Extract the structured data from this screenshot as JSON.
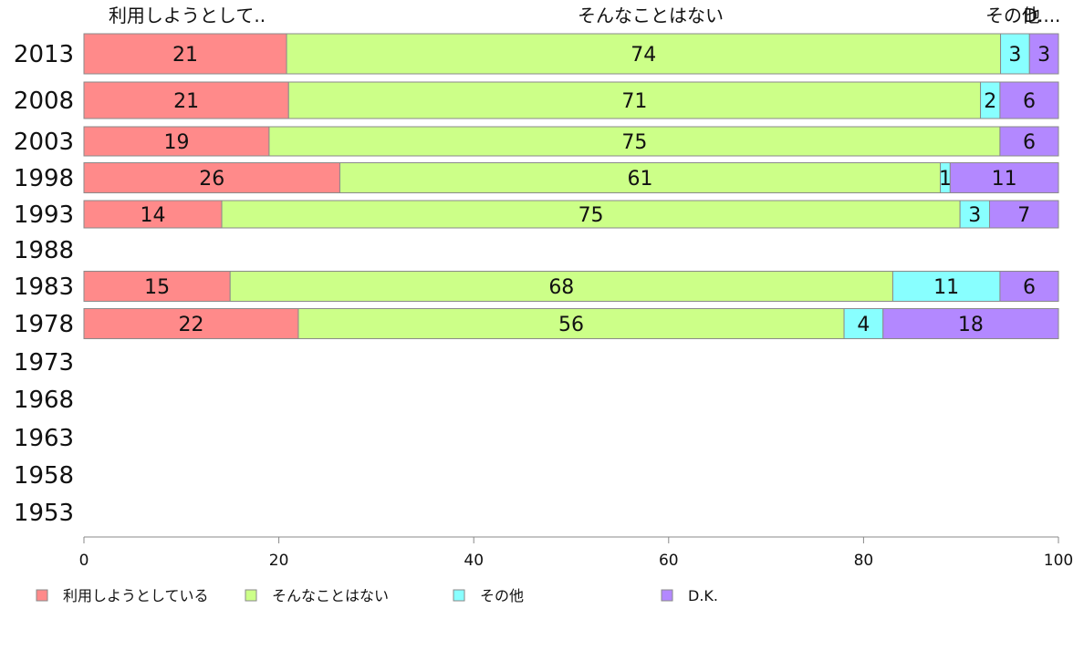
{
  "chart_data": {
    "type": "bar",
    "orientation": "horizontal",
    "stacked": true,
    "categories": [
      "2013",
      "2008",
      "2003",
      "1998",
      "1993",
      "1988",
      "1983",
      "1978",
      "1973",
      "1968",
      "1963",
      "1958",
      "1953"
    ],
    "series": [
      {
        "name": "利用しようとしている",
        "color": "#ff8a8a",
        "values": [
          21,
          21,
          19,
          26,
          14,
          null,
          15,
          22,
          null,
          null,
          null,
          null,
          null
        ]
      },
      {
        "name": "そんなことはない",
        "color": "#ccff88",
        "values": [
          74,
          71,
          75,
          61,
          75,
          null,
          68,
          56,
          null,
          null,
          null,
          null,
          null
        ]
      },
      {
        "name": "その他",
        "color": "#88ffff",
        "values": [
          3,
          2,
          0,
          1,
          3,
          null,
          11,
          4,
          null,
          null,
          null,
          null,
          null
        ]
      },
      {
        "name": "D.K.",
        "color": "#b388ff",
        "values": [
          3,
          6,
          6,
          11,
          7,
          null,
          6,
          18,
          null,
          null,
          null,
          null,
          null
        ]
      }
    ],
    "column_labels": [
      "利用しようとして..",
      "そんなことはない",
      "その他",
      "D...."
    ],
    "xlim": [
      0,
      100
    ],
    "xticks": [
      "0",
      "20",
      "40",
      "60",
      "80",
      "100"
    ],
    "legend_position": "bottom",
    "grid": false
  }
}
